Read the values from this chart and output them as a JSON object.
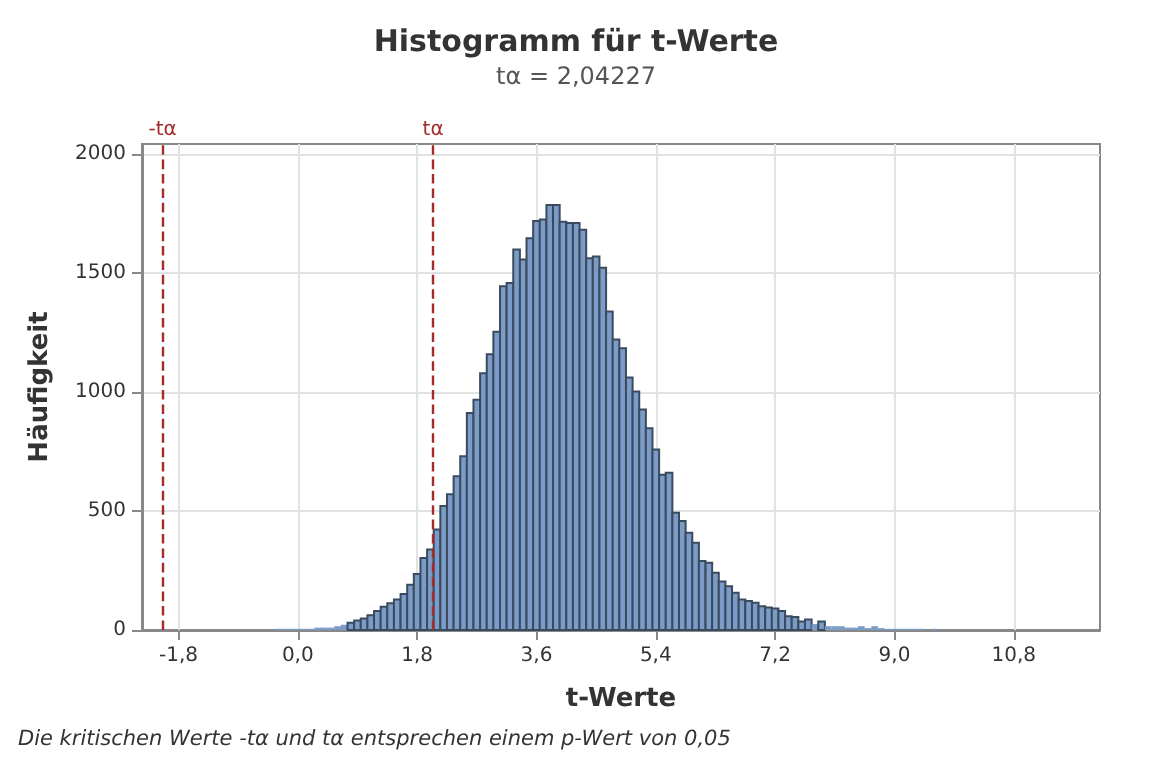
{
  "chart_data": {
    "type": "histogram",
    "title": "Histogramm für t-Werte",
    "subtitle": "tα = 2,04227",
    "xlabel": "t-Werte",
    "ylabel": "Häufigkeit",
    "bins": [
      -0.35,
      -0.25,
      -0.15,
      -0.05,
      0.05,
      0.15,
      0.25,
      0.35,
      0.45,
      0.55,
      0.65,
      0.75,
      0.85,
      0.95,
      1.05,
      1.15,
      1.25,
      1.35,
      1.45,
      1.55,
      1.65,
      1.75,
      1.85,
      1.95,
      2.05,
      2.15,
      2.25,
      2.35,
      2.45,
      2.55,
      2.65,
      2.75,
      2.85,
      2.95,
      3.05,
      3.15,
      3.25,
      3.35,
      3.45,
      3.55,
      3.65,
      3.75,
      3.85,
      3.95,
      4.05,
      4.15,
      4.25,
      4.35,
      4.45,
      4.55,
      4.65,
      4.75,
      4.85,
      4.95,
      5.05,
      5.15,
      5.25,
      5.35,
      5.45,
      5.55,
      5.65,
      5.75,
      5.85,
      5.95,
      6.05,
      6.15,
      6.25,
      6.35,
      6.45,
      6.55,
      6.65,
      6.75,
      6.85,
      6.95,
      7.05,
      7.15,
      7.25,
      7.35,
      7.45,
      7.55,
      7.65,
      7.75,
      7.85,
      7.95,
      8.05,
      8.15,
      8.25,
      8.35,
      8.45,
      8.55,
      8.65,
      8.75,
      8.85,
      8.95,
      9.05,
      9.15,
      9.25,
      9.35,
      9.45,
      9.55,
      9.65,
      9.75,
      9.85,
      9.95,
      10.05,
      10.15,
      10.25,
      10.35,
      10.45,
      10.55,
      10.65,
      10.75,
      10.85,
      10.95,
      11.05,
      11.15,
      11.25,
      11.35,
      11.45,
      11.55,
      11.65,
      11.75,
      11.85
    ],
    "values": [
      5,
      5,
      5,
      5,
      5,
      5,
      10,
      10,
      10,
      16,
      22,
      30,
      40,
      48,
      62,
      80,
      98,
      112,
      128,
      151,
      190,
      235,
      302,
      338,
      422,
      520,
      570,
      645,
      729,
      911,
      967,
      1078,
      1157,
      1252,
      1443,
      1457,
      1597,
      1555,
      1644,
      1717,
      1723,
      1784,
      1784,
      1714,
      1708,
      1708,
      1680,
      1560,
      1568,
      1521,
      1337,
      1219,
      1183,
      1060,
      1001,
      926,
      847,
      758,
      652,
      660,
      492,
      458,
      408,
      366,
      290,
      282,
      240,
      204,
      184,
      156,
      128,
      122,
      114,
      100,
      94,
      90,
      80,
      58,
      55,
      36,
      44,
      25,
      36,
      16,
      16,
      16,
      10,
      10,
      16,
      8,
      16,
      8,
      5,
      5,
      5,
      5,
      5,
      5,
      0,
      5,
      0,
      0,
      0,
      0,
      0,
      0,
      0,
      0,
      0,
      0,
      0,
      0,
      0,
      0,
      0,
      0,
      0,
      0,
      0,
      0,
      0,
      0
    ],
    "color": "#7b9cc8",
    "xlim": [
      -2.35,
      12.1
    ],
    "xticks": [
      {
        "value": -1.8,
        "label": "-1,8"
      },
      {
        "value": 0,
        "label": "0,0"
      },
      {
        "value": 1.8,
        "label": "1,8"
      },
      {
        "value": 3.6,
        "label": "3,6"
      },
      {
        "value": 5.4,
        "label": "5,4"
      },
      {
        "value": 7.2,
        "label": "7,2"
      },
      {
        "value": 9.0,
        "label": "9,0"
      },
      {
        "value": 10.8,
        "label": "10,8"
      }
    ],
    "ylim": [
      0,
      2040
    ],
    "yticks": [
      0,
      500,
      1000,
      1500,
      2000
    ],
    "grid": true,
    "ref_lines": [
      {
        "axis": "x",
        "value": -2.04227,
        "label": "-tα",
        "color": "#a52a2a",
        "line_style": "dashed"
      },
      {
        "axis": "x",
        "value": 2.04227,
        "label": "tα",
        "color": "#a52a2a",
        "line_style": "dashed"
      }
    ],
    "annotations": [
      "Die kritischen Werte -tα und tα entsprechen einem p-Wert von 0,05"
    ]
  }
}
